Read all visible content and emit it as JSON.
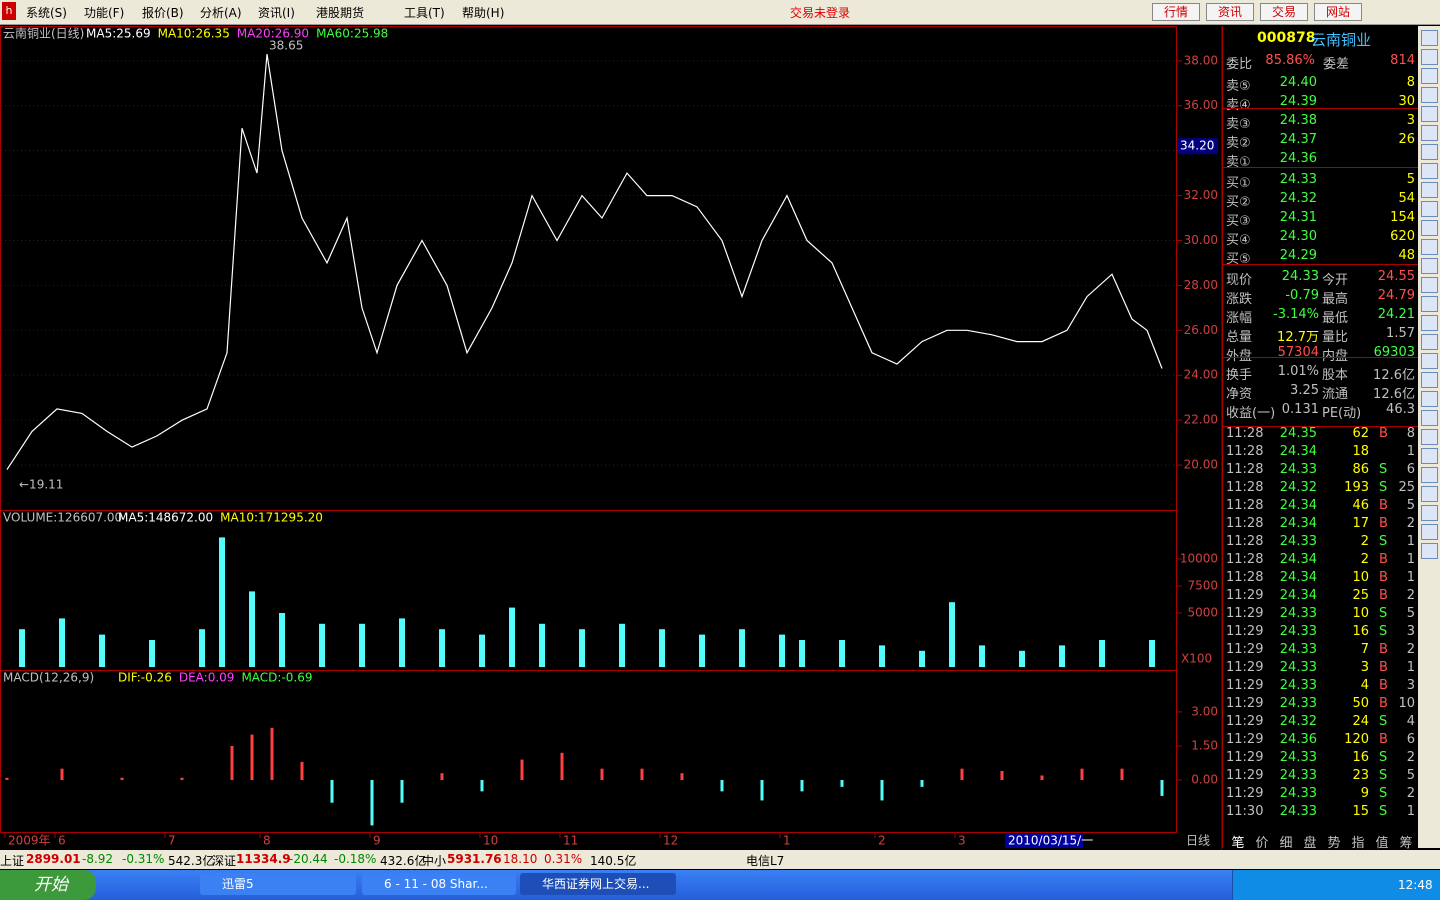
{
  "menu": [
    "系统(S)",
    "功能(F)",
    "报价(B)",
    "分析(A)",
    "资讯(I)",
    "港股期货",
    "工具(T)",
    "帮助(H)"
  ],
  "login_status": "交易未登录",
  "top_buttons": [
    "行情",
    "资讯",
    "交易",
    "网站"
  ],
  "chart_data": [
    {
      "type": "line",
      "title": "云南铜业(日线)",
      "legend": [
        "MA5:25.69",
        "MA10:26.35",
        "MA20:26.90",
        "MA60:25.98"
      ],
      "color": "#ffffff",
      "x": [
        1,
        6,
        11,
        16,
        21,
        26,
        31,
        36,
        41,
        45,
        48,
        51,
        53,
        56,
        60,
        65,
        69,
        72,
        75,
        79,
        84,
        89,
        93,
        98,
        102,
        106,
        111,
        116,
        120,
        125,
        129,
        134,
        139,
        144,
        148,
        152,
        157,
        161,
        166,
        170,
        174,
        179,
        184,
        189,
        193,
        198,
        203,
        208,
        213,
        217,
        222,
        226,
        229,
        232
      ],
      "values": [
        19.8,
        21.5,
        22.5,
        22.3,
        21.5,
        20.8,
        21.3,
        22.0,
        22.5,
        25.0,
        35.0,
        33.0,
        38.3,
        34.0,
        31.0,
        29.0,
        31.0,
        27.0,
        25.0,
        28.0,
        30.0,
        28.0,
        25.0,
        27.0,
        29.0,
        32.0,
        30.0,
        32.0,
        31.0,
        33.0,
        32.0,
        32.0,
        31.5,
        30.0,
        27.5,
        30.0,
        32.0,
        30.0,
        29.0,
        27.0,
        25.0,
        24.5,
        25.5,
        26.0,
        26.0,
        25.8,
        25.5,
        25.5,
        26.0,
        27.5,
        28.5,
        26.5,
        26.0,
        24.3
      ],
      "xlim": [
        0,
        232
      ],
      "xticks": [
        {
          "value": 1,
          "label": "2009年"
        },
        {
          "value": 11,
          "label": "6"
        },
        {
          "value": 33,
          "label": "7"
        },
        {
          "value": 52,
          "label": "8"
        },
        {
          "value": 74,
          "label": "9"
        },
        {
          "value": 96,
          "label": "10"
        },
        {
          "value": 112,
          "label": "11"
        },
        {
          "value": 132,
          "label": "12"
        },
        {
          "value": 156,
          "label": "1"
        },
        {
          "value": 175,
          "label": "2"
        },
        {
          "value": 191,
          "label": "3"
        },
        {
          "value": 201,
          "label": "2010/03/15/一"
        }
      ],
      "ylim": [
        18,
        39.55
      ],
      "yticks": [
        {
          "value": 38,
          "label": "38.00"
        },
        {
          "value": 36,
          "label": "36.00"
        },
        {
          "value": 34,
          "label": "34.00"
        },
        {
          "value": 32,
          "label": "32.00"
        },
        {
          "value": 30,
          "label": "30.00"
        },
        {
          "value": 28,
          "label": "28.00"
        },
        {
          "value": 26,
          "label": "26.00"
        },
        {
          "value": 24,
          "label": "24.00"
        },
        {
          "value": 22,
          "label": "22.00"
        },
        {
          "value": 20,
          "label": "20.00"
        }
      ],
      "grid": true,
      "annotations": [
        {
          "x": 53,
          "y": 38.65,
          "text": "38.65"
        },
        {
          "x": 3,
          "y": 19.11,
          "text": "←19.11"
        }
      ],
      "cursor_price": {
        "value": 34.2,
        "label": "34.20"
      },
      "period": "日线"
    },
    {
      "type": "bar",
      "title": "VOLUME:126607.00",
      "legend": [
        "MA5:148672.00",
        "MA10:171295.20"
      ],
      "color": "#54fcfc",
      "unit_label": "X100",
      "x": [
        4,
        12,
        20,
        30,
        40,
        44,
        50,
        56,
        64,
        72,
        80,
        88,
        96,
        102,
        108,
        116,
        124,
        132,
        140,
        148,
        156,
        160,
        168,
        176,
        184,
        190,
        196,
        204,
        212,
        220,
        230
      ],
      "values": [
        3500,
        4500,
        3000,
        2500,
        3500,
        12000,
        7000,
        5000,
        4000,
        4000,
        4500,
        3500,
        3000,
        5500,
        4000,
        3500,
        4000,
        3500,
        3000,
        3500,
        3000,
        2500,
        2500,
        2000,
        1500,
        6000,
        2000,
        1500,
        2000,
        2500,
        2500
      ],
      "xlim": [
        0,
        232
      ],
      "ylim": [
        0,
        14350
      ],
      "yticks": [
        10000,
        7500,
        5000
      ]
    },
    {
      "type": "bar",
      "title": "MACD(12,26,9)",
      "legend": [
        "DIF:-0.26",
        "DEA:0.09",
        "MACD:-0.69"
      ],
      "color": "#ff4040",
      "negative_color": "#54fcfc",
      "x": [
        1,
        12,
        24,
        36,
        46,
        50,
        54,
        60,
        66,
        74,
        80,
        88,
        96,
        104,
        112,
        120,
        128,
        136,
        144,
        152,
        160,
        168,
        176,
        184,
        192,
        200,
        208,
        216,
        224,
        232
      ],
      "values": [
        0.1,
        0.5,
        0.1,
        0.1,
        1.5,
        2.0,
        2.3,
        0.8,
        -1.0,
        -2.0,
        -1.0,
        0.3,
        -0.5,
        0.9,
        1.2,
        0.5,
        0.5,
        0.3,
        -0.5,
        -0.9,
        -0.5,
        -0.3,
        -0.9,
        -0.3,
        0.5,
        0.4,
        0.2,
        0.5,
        0.5,
        -0.7
      ],
      "xlim": [
        0,
        232
      ],
      "ylim": [
        -2.29,
        4.76
      ],
      "yticks": [
        {
          "value": 3,
          "label": "3.00"
        },
        {
          "value": 1.5,
          "label": "1.50"
        },
        {
          "value": 0,
          "label": "0.00"
        }
      ]
    }
  ],
  "quote": {
    "code": "000878",
    "name": "云南铜业",
    "ratio_label": "委比",
    "ratio": "85.86%",
    "diff_label": "委差",
    "diff": "814",
    "sell": [
      {
        "label": "卖⑤",
        "price": "24.40",
        "vol": "8"
      },
      {
        "label": "卖④",
        "price": "24.39",
        "vol": "30"
      },
      {
        "label": "卖③",
        "price": "24.38",
        "vol": "3"
      },
      {
        "label": "卖②",
        "price": "24.37",
        "vol": "26"
      },
      {
        "label": "卖①",
        "price": "24.36"
      }
    ],
    "buy": [
      {
        "label": "买①",
        "price": "24.33",
        "vol": "5"
      },
      {
        "label": "买②",
        "price": "24.32",
        "vol": "54"
      },
      {
        "label": "买③",
        "price": "24.31",
        "vol": "154"
      },
      {
        "label": "买④",
        "price": "24.30",
        "vol": "620"
      },
      {
        "label": "买⑤",
        "price": "24.29",
        "vol": "48"
      }
    ],
    "stats": [
      [
        "现价",
        "24.33",
        "今开",
        "24.55"
      ],
      [
        "涨跌",
        "-0.79",
        "最高",
        "24.79"
      ],
      [
        "涨幅",
        "-3.14%",
        "最低",
        "24.21"
      ],
      [
        "总量",
        "12.7万",
        "量比",
        "1.57"
      ],
      [
        "外盘",
        "57304",
        "内盘",
        "69303"
      ],
      [
        "换手",
        "1.01%",
        "股本",
        "12.6亿"
      ],
      [
        "净资",
        "3.25",
        "流通",
        "12.6亿"
      ],
      [
        "收益(一)",
        "0.131",
        "PE(动)",
        "46.3"
      ]
    ],
    "ticks": [
      [
        "11:28",
        "24.35",
        "62",
        "B",
        "8"
      ],
      [
        "11:28",
        "24.34",
        "18",
        null,
        "1"
      ],
      [
        "11:28",
        "24.33",
        "86",
        "S",
        "6"
      ],
      [
        "11:28",
        "24.32",
        "193",
        "S",
        "25"
      ],
      [
        "11:28",
        "24.34",
        "46",
        "B",
        "5"
      ],
      [
        "11:28",
        "24.34",
        "17",
        "B",
        "2"
      ],
      [
        "11:28",
        "24.33",
        "2",
        "S",
        "1"
      ],
      [
        "11:28",
        "24.34",
        "2",
        "B",
        "1"
      ],
      [
        "11:28",
        "24.34",
        "10",
        "B",
        "1"
      ],
      [
        "11:29",
        "24.34",
        "25",
        "B",
        "2"
      ],
      [
        "11:29",
        "24.33",
        "10",
        "S",
        "5"
      ],
      [
        "11:29",
        "24.33",
        "16",
        "S",
        "3"
      ],
      [
        "11:29",
        "24.33",
        "7",
        "B",
        "2"
      ],
      [
        "11:29",
        "24.33",
        "3",
        "B",
        "1"
      ],
      [
        "11:29",
        "24.33",
        "4",
        "B",
        "3"
      ],
      [
        "11:29",
        "24.33",
        "50",
        "B",
        "10"
      ],
      [
        "11:29",
        "24.32",
        "24",
        "S",
        "4"
      ],
      [
        "11:29",
        "24.36",
        "120",
        "B",
        "6"
      ],
      [
        "11:29",
        "24.33",
        "16",
        "S",
        "2"
      ],
      [
        "11:29",
        "24.33",
        "23",
        "S",
        "5"
      ],
      [
        "11:29",
        "24.33",
        "9",
        "S",
        "2"
      ],
      [
        "11:30",
        "24.33",
        "15",
        "S",
        "1"
      ]
    ],
    "tabs": [
      "笔",
      "价",
      "细",
      "盘",
      "势",
      "指",
      "值",
      "筹"
    ]
  },
  "status_bar": [
    "上证",
    "2899.01",
    "-8.92",
    "-0.31%",
    "542.3亿",
    "深证",
    "11334.9",
    "-20.44",
    "-0.18%",
    "432.6亿",
    "中小",
    "5931.76",
    "18.10",
    "0.31%",
    "140.5亿",
    "电信L7"
  ],
  "taskbar": {
    "start": "开始",
    "windows": [
      "迅雷5",
      "6 - 11 - 08 Shar...",
      "华西证券网上交易..."
    ],
    "clock": "12:48"
  }
}
